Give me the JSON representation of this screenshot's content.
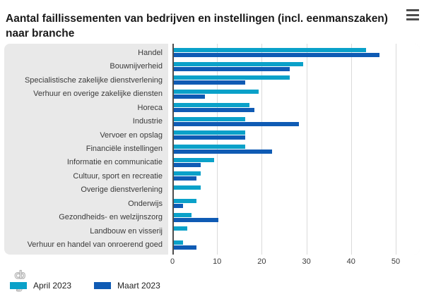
{
  "header": {
    "title": "Aantal faillissementen van bedrijven en instellingen (incl. eenmanszaken) naar branche"
  },
  "chart_data": {
    "type": "bar",
    "orientation": "horizontal",
    "title": "Aantal faillissementen van bedrijven en instellingen (incl. eenmanszaken) naar branche",
    "categories": [
      "Handel",
      "Bouwnijverheid",
      "Specialistische zakelijke dienstverlening",
      "Verhuur en overige zakelijke diensten",
      "Horeca",
      "Industrie",
      "Vervoer en opslag",
      "Financiële instellingen",
      "Informatie en communicatie",
      "Cultuur, sport en recreatie",
      "Overige dienstverlening",
      "Onderwijs",
      "Gezondheids- en welzijnszorg",
      "Landbouw en visserij",
      "Verhuur en handel van onroerend goed"
    ],
    "series": [
      {
        "name": "April 2023",
        "color": "#0aa1c9",
        "values": [
          43,
          29,
          26,
          19,
          17,
          16,
          16,
          16,
          9,
          6,
          6,
          5,
          4,
          3,
          2
        ]
      },
      {
        "name": "Maart 2023",
        "color": "#0f5bb4",
        "values": [
          46,
          26,
          16,
          7,
          18,
          28,
          16,
          22,
          6,
          5,
          0,
          2,
          10,
          0,
          5
        ]
      }
    ],
    "xlabel": "",
    "ylabel": "",
    "xlim": [
      0,
      50
    ],
    "xticks": [
      0,
      10,
      20,
      30,
      40,
      50
    ],
    "grid": true,
    "legend_position": "bottom-left"
  },
  "colors": {
    "april": "#0aa1c9",
    "maart": "#0f5bb4",
    "panel_bg": "#e9e9e9",
    "plot_bg": "#ffffff",
    "gridline": "#dadada",
    "axis_line": "#4d4d4d",
    "logo_gray": "#b3b3b3"
  },
  "branding": {
    "logo": "cbs-logo"
  }
}
